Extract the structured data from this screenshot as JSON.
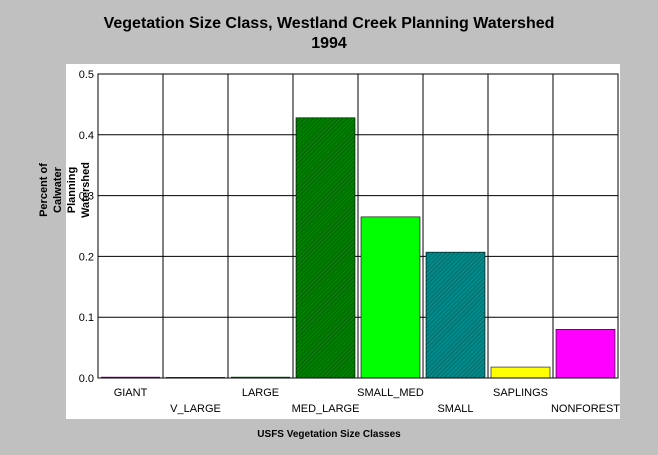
{
  "chart_data": {
    "type": "bar",
    "title": [
      "Vegetation Size Class, Westland Creek Planning Watershed",
      "1994"
    ],
    "xlabel": "USFS Vegetation Size Classes",
    "ylabel": [
      "Percent of Calwater Planning",
      "Watershed"
    ],
    "categories": [
      "GIANT",
      "V_LARGE",
      "LARGE",
      "MED_LARGE",
      "SMALL_MED",
      "SMALL",
      "SAPLINGS",
      "NONFOREST"
    ],
    "values": [
      0.002,
      0.0,
      0.002,
      0.428,
      0.265,
      0.207,
      0.018,
      0.08
    ],
    "colors": [
      "#800080",
      "#404040",
      "#006400",
      "#008000",
      "#00ff00",
      "#008b8b",
      "#ffff00",
      "#ff00ff"
    ],
    "patterns": [
      "solid",
      "solid",
      "solid",
      "hatch",
      "solid",
      "hatch",
      "solid",
      "solid"
    ],
    "ylim": [
      0,
      0.5
    ],
    "yticks": [
      "0.0",
      "0.1",
      "0.2",
      "0.3",
      "0.4",
      "0.5"
    ],
    "grid": true,
    "legend": "none"
  }
}
